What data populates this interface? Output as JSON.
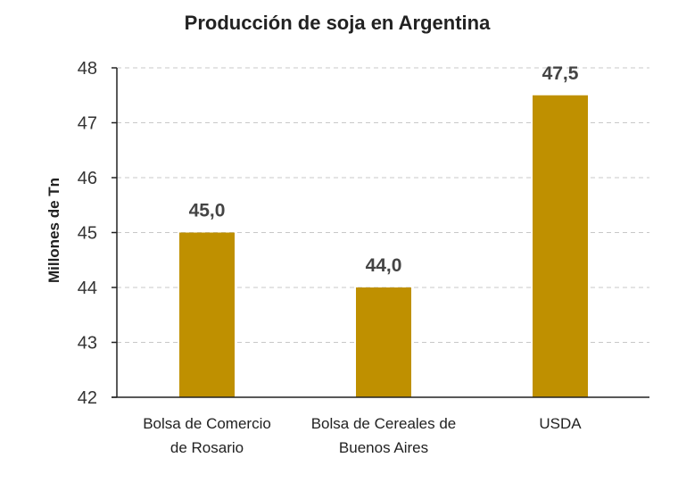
{
  "chart_data": {
    "type": "bar",
    "title": "Producción  de soja  en Argentina",
    "xlabel": "",
    "ylabel": "Millones de Tn",
    "categories": [
      [
        "Bolsa de Comercio",
        "de Rosario"
      ],
      [
        "Bolsa de Cereales de",
        "Buenos Aires"
      ],
      [
        "USDA"
      ]
    ],
    "values": [
      45.0,
      44.0,
      47.5
    ],
    "data_labels": [
      "45,0",
      "44,0",
      "47,5"
    ],
    "ylim": [
      42,
      48
    ],
    "yticks": [
      42,
      43,
      44,
      45,
      46,
      47,
      48
    ],
    "ytick_labels": [
      "42",
      "43",
      "44",
      "45",
      "46",
      "47",
      "48"
    ],
    "grid": true,
    "legend": "none",
    "bar_color": "#BF9000",
    "grid_color": "#C8C8C8",
    "axis_color": "#222222"
  }
}
